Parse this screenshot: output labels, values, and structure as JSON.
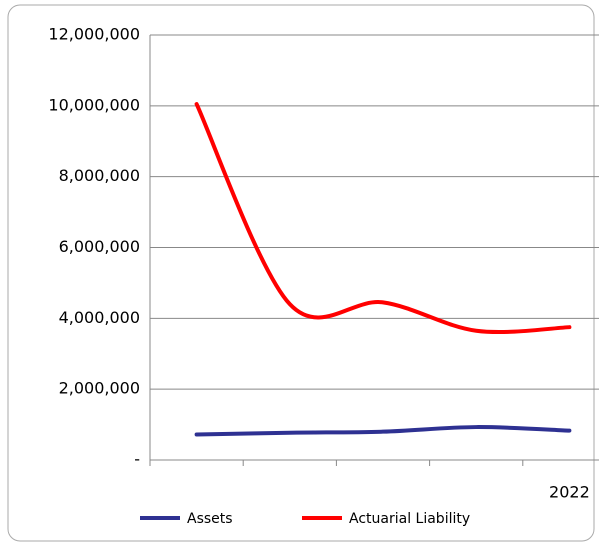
{
  "chart_data": {
    "type": "line",
    "categories": [
      null,
      null,
      null,
      null,
      "2022"
    ],
    "series": [
      {
        "name": "Assets",
        "color": "#2e3192",
        "values": [
          720000,
          770000,
          800000,
          930000,
          830000
        ]
      },
      {
        "name": "Actuarial Liability",
        "color": "#ff0000",
        "values": [
          10050000,
          4400000,
          4450000,
          3650000,
          3750000
        ]
      }
    ],
    "ylim": [
      0,
      12000000
    ],
    "yticks": [
      {
        "value": 0,
        "label": "-"
      },
      {
        "value": 2000000,
        "label": "2,000,000"
      },
      {
        "value": 4000000,
        "label": "4,000,000"
      },
      {
        "value": 6000000,
        "label": "6,000,000"
      },
      {
        "value": 8000000,
        "label": "8,000,000"
      },
      {
        "value": 10000000,
        "label": "10,000,000"
      },
      {
        "value": 12000000,
        "label": "12,000,000"
      }
    ],
    "grid": true,
    "smooth": true,
    "legend": "bottom"
  }
}
